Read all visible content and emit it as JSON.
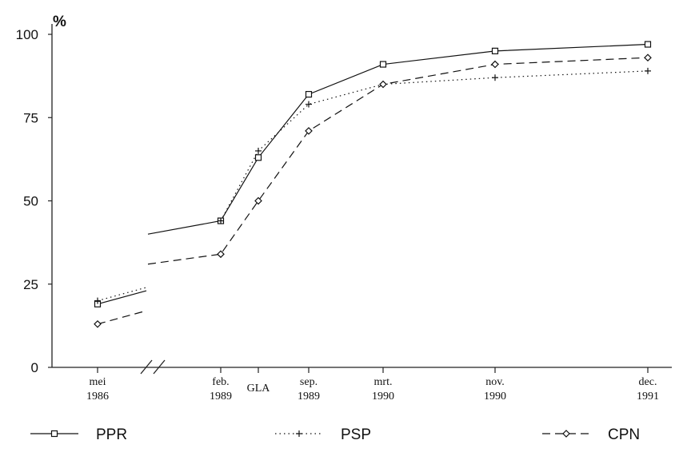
{
  "chart_data": {
    "type": "line",
    "title": "",
    "xlabel": "",
    "ylabel": "%",
    "ylim": [
      0,
      100
    ],
    "yticks": [
      "0",
      "25",
      "50",
      "75",
      "100"
    ],
    "categories": [
      [
        "mei",
        "1986"
      ],
      [
        "feb.",
        "1989"
      ],
      [
        "GLA"
      ],
      [
        "sep.",
        "1989"
      ],
      [
        "mrt.",
        "1990"
      ],
      [
        "nov.",
        "1990"
      ],
      [
        "dec.",
        "1991"
      ]
    ],
    "axis_break": "after mei 1986",
    "series": [
      {
        "name": "PPR",
        "marker": "square",
        "dash": "solid",
        "pre_break": [
          19,
          23
        ],
        "values": [
          40,
          44,
          63,
          82,
          91,
          95,
          97
        ]
      },
      {
        "name": "PSP",
        "marker": "plus",
        "dash": "dotted",
        "pre_break": [
          20,
          24
        ],
        "values": [
          null,
          44,
          65,
          79,
          85,
          87,
          89
        ]
      },
      {
        "name": "CPN",
        "marker": "diamond",
        "dash": "dashed",
        "pre_break": [
          13,
          17
        ],
        "values": [
          31,
          34,
          50,
          71,
          85,
          91,
          93
        ]
      }
    ],
    "legend_position": "bottom"
  }
}
